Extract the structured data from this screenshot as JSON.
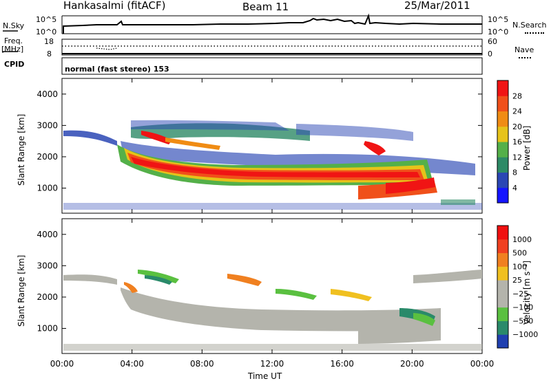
{
  "header": {
    "station": "Hankasalmi (fitACF)",
    "beam": "Beam 11",
    "date": "25/Mar/2011"
  },
  "top_panels": {
    "nsky_label": "N.Sky",
    "nsky_top": "10^5",
    "nsky_bottom": "10^0",
    "nsearch_label": "N.Search",
    "nsearch_top": "10^5",
    "nsearch_bottom": "10^0",
    "freq_label": "Freq.",
    "freq_unit": "[MHz]",
    "freq_top": "18",
    "freq_bottom": "8",
    "nave_label": "Nave",
    "nave_top": "60",
    "nave_bottom": "0",
    "cpid_label": "CPID",
    "mode_text": "normal (fast stereo) 153"
  },
  "chart_data": [
    {
      "type": "heatmap",
      "name": "power",
      "ylabel": "Slant Range [km]",
      "xlabel": "",
      "y_ticks": [
        "1000",
        "2000",
        "3000",
        "4000"
      ],
      "ylim": [
        200,
        4500
      ],
      "colorbar_label": "Power [dB]",
      "colorbar_ticks": [
        "4",
        "8",
        "12",
        "16",
        "20",
        "24",
        "28"
      ],
      "colorbar_colors": [
        "#1414ff",
        "#2a46b4",
        "#2d8a66",
        "#54b049",
        "#e6c31a",
        "#f08c14",
        "#f0501a",
        "#f01414"
      ]
    },
    {
      "type": "heatmap",
      "name": "velocity",
      "ylabel": "Slant Range [km]",
      "xlabel": "Time UT",
      "y_ticks": [
        "1000",
        "2000",
        "3000",
        "4000"
      ],
      "ylim": [
        200,
        4500
      ],
      "colorbar_label": "Velocity [m s⁻¹]",
      "colorbar_ticks": [
        "1000",
        "500",
        "100",
        "25",
        "−25",
        "−100",
        "−500",
        "−1000"
      ],
      "colorbar_colors": [
        "#2040b0",
        "#2a8a6a",
        "#5ac040",
        "#b4b4ac",
        "#b4b4ac",
        "#f0c020",
        "#f08020",
        "#f04020",
        "#f01010"
      ],
      "x_ticks": [
        "00:00",
        "04:00",
        "08:00",
        "12:00",
        "16:00",
        "20:00",
        "00:00"
      ]
    }
  ]
}
